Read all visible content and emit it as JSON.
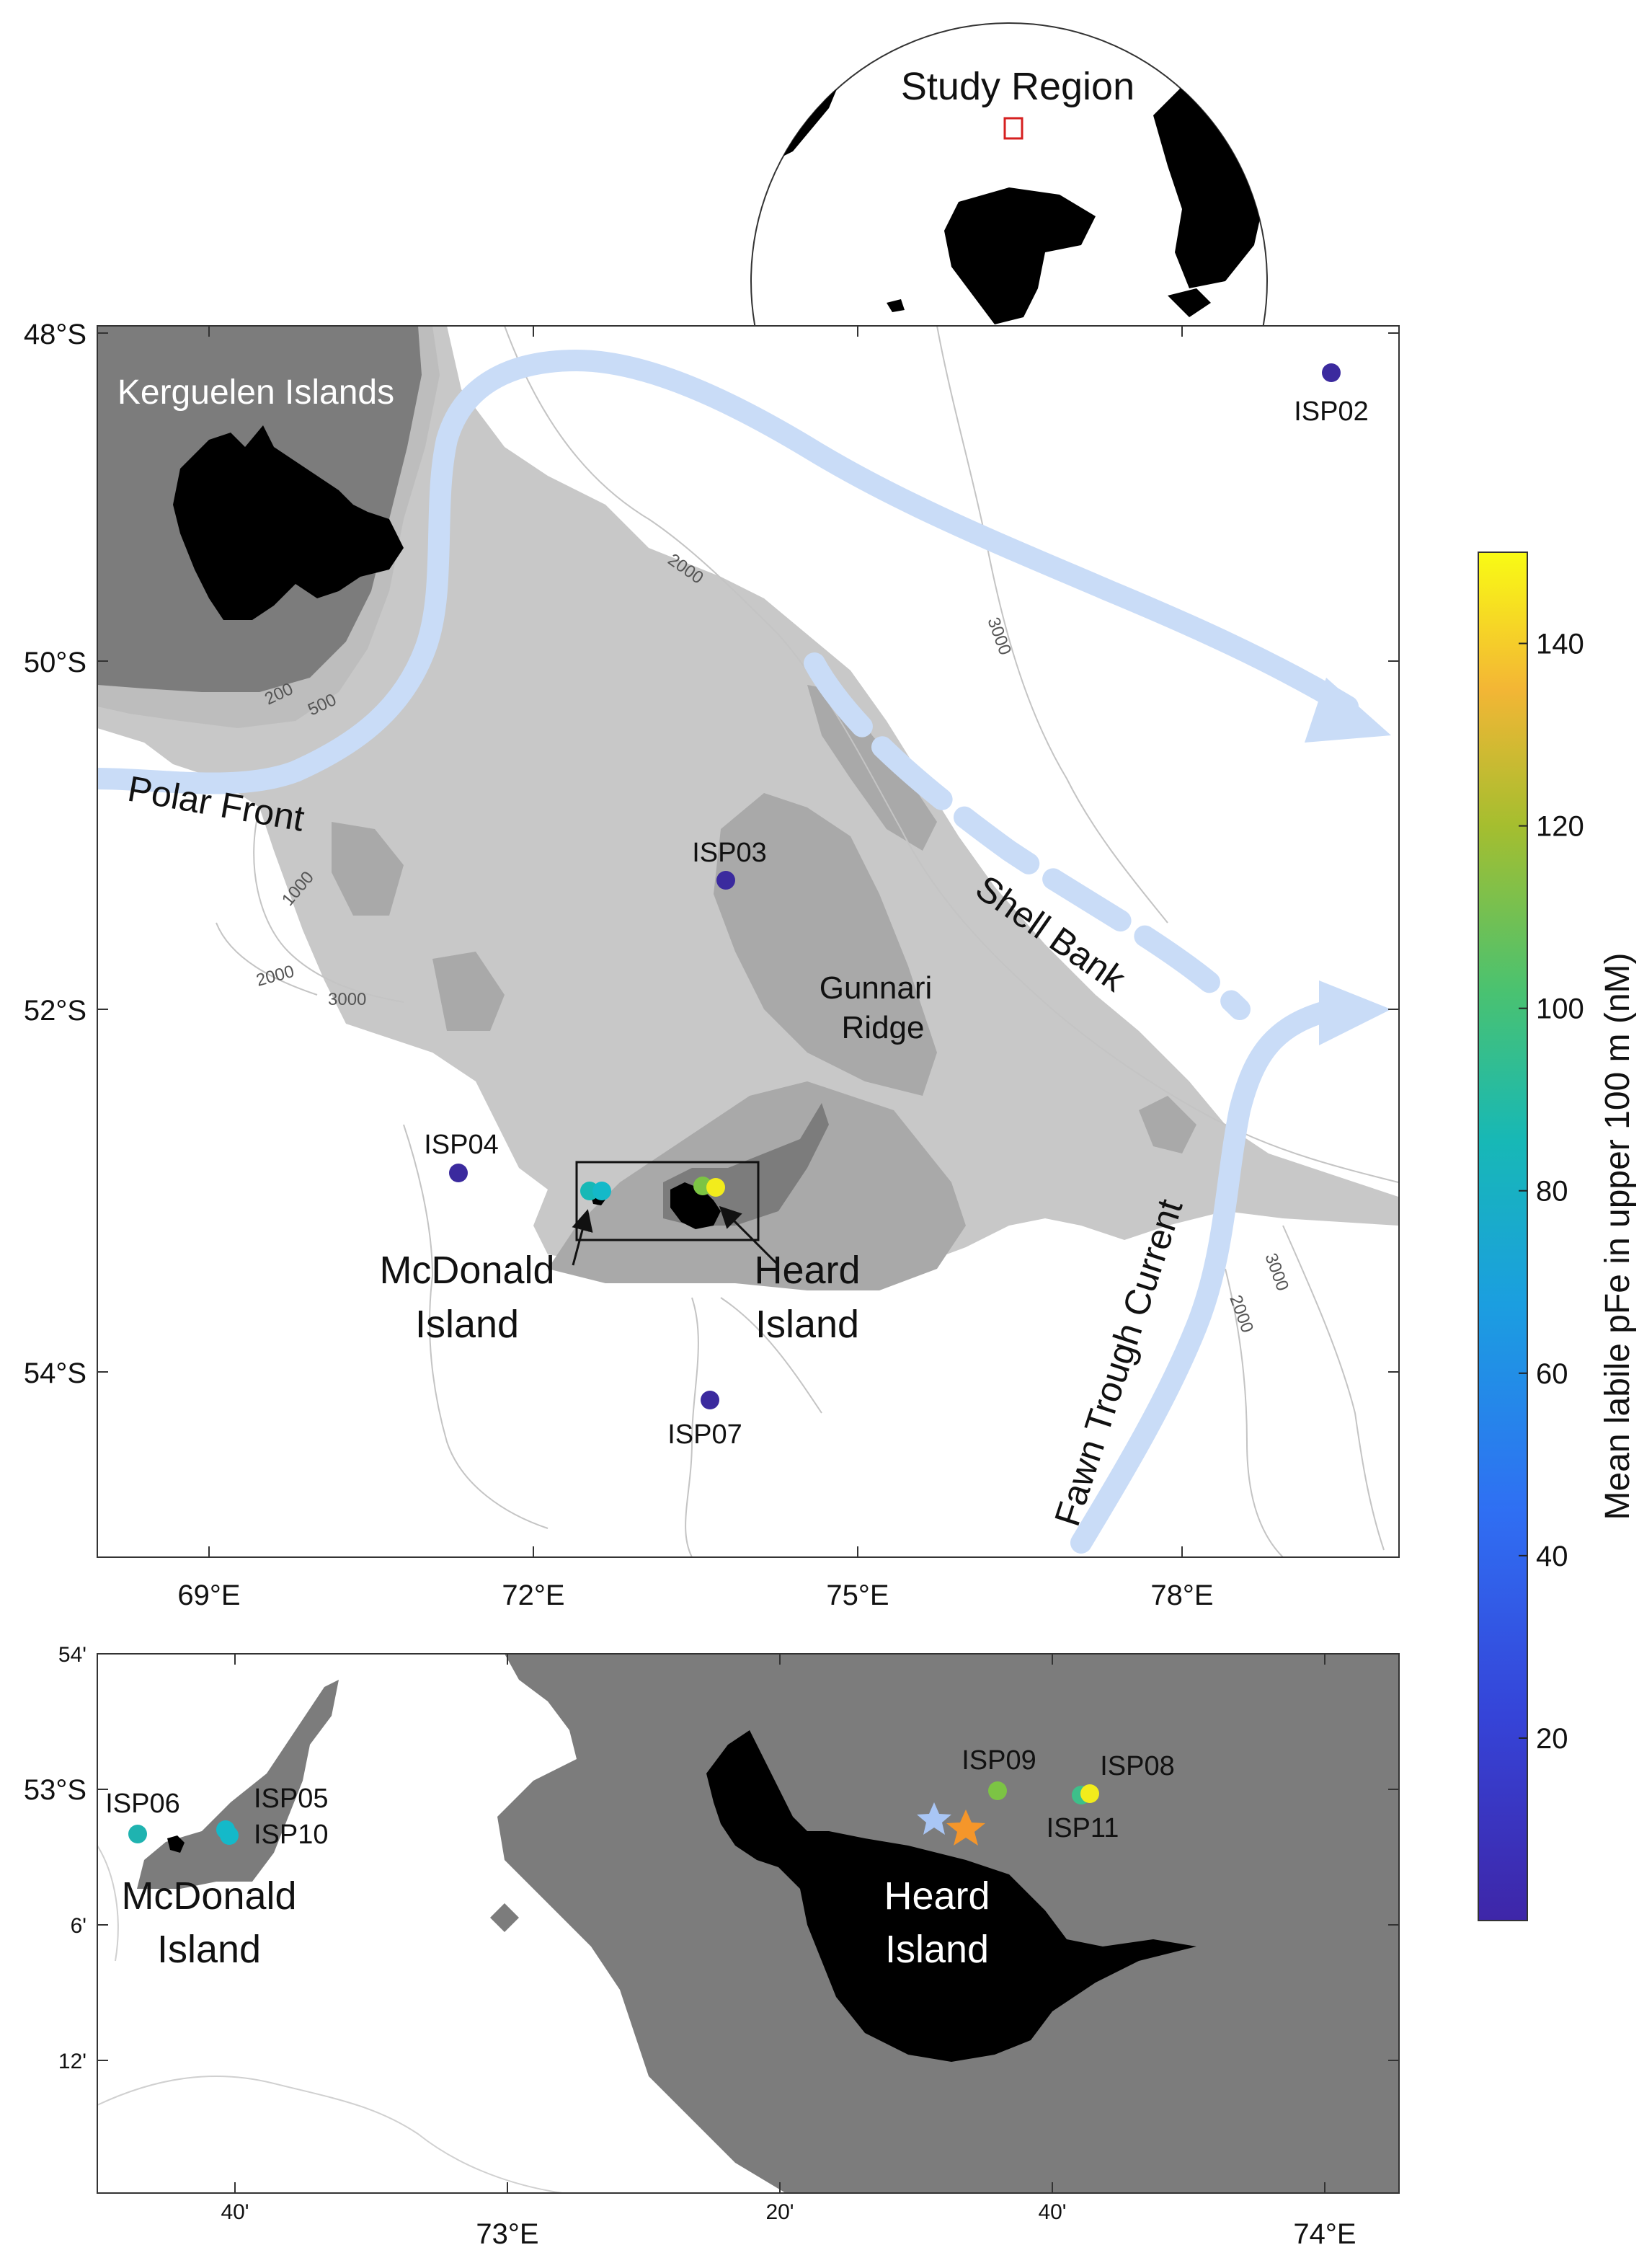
{
  "inset": {
    "title": "Study Region"
  },
  "main_map": {
    "lat_ticks": [
      "48°S",
      "50°S",
      "52°S",
      "54°S"
    ],
    "lon_ticks": [
      "69°E",
      "72°E",
      "75°E",
      "78°E"
    ],
    "region_labels": {
      "kerguelen": "Kerguelen Islands",
      "polar_front": "Polar Front",
      "shell_bank": "Shell Bank",
      "gunnari_1": "Gunnari",
      "gunnari_2": "Ridge",
      "fawn": "Fawn Trough Current",
      "mcdonald_1": "McDonald",
      "mcdonald_2": "Island",
      "heard_1": "Heard",
      "heard_2": "Island"
    },
    "isobaths": [
      "200",
      "500",
      "1000",
      "2000",
      "3000",
      "2000",
      "3000",
      "2000",
      "3000"
    ],
    "stations": [
      {
        "name": "ISP02",
        "color": "#3b2a9e"
      },
      {
        "name": "ISP03",
        "color": "#3b2a9e"
      },
      {
        "name": "ISP04",
        "color": "#3b2a9e"
      },
      {
        "name": "ISP07",
        "color": "#3b2a9e"
      }
    ]
  },
  "zoom_map": {
    "lat_ticks": [
      "54'",
      "53°S",
      "6'",
      "12'"
    ],
    "lon_ticks": [
      "40'",
      "73°E",
      "20'",
      "40'",
      "74°E"
    ],
    "minor_lon_ticks": [
      "40'",
      "20'",
      "40'"
    ],
    "major_lon_ticks": [
      "73°E",
      "74°E"
    ],
    "mcdonald_1": "McDonald",
    "mcdonald_2": "Island",
    "heard_1": "Heard",
    "heard_2": "Island",
    "stations": [
      {
        "name": "ISP06",
        "color": "#1fb3b0"
      },
      {
        "name": "ISP05",
        "color": "#14b9c9"
      },
      {
        "name": "ISP10",
        "color": "#14b9c9"
      },
      {
        "name": "ISP09",
        "color": "#7cc444"
      },
      {
        "name": "ISP08",
        "color": "#f2ec1c"
      },
      {
        "name": "ISP11",
        "color": "#3dc08a"
      }
    ],
    "star_colors": [
      "#a9c6f5",
      "#f5962a"
    ]
  },
  "colorbar": {
    "label": "Mean labile pFe in upper 100 m (nM)",
    "ticks": [
      "20",
      "40",
      "60",
      "80",
      "100",
      "120",
      "140"
    ],
    "min": 0,
    "max": 150,
    "colors": [
      "#3e26a8",
      "#2f5df6",
      "#1b9ee0",
      "#17b8b6",
      "#4ac270",
      "#a5be2f",
      "#f3b635",
      "#f9fb14"
    ]
  }
}
